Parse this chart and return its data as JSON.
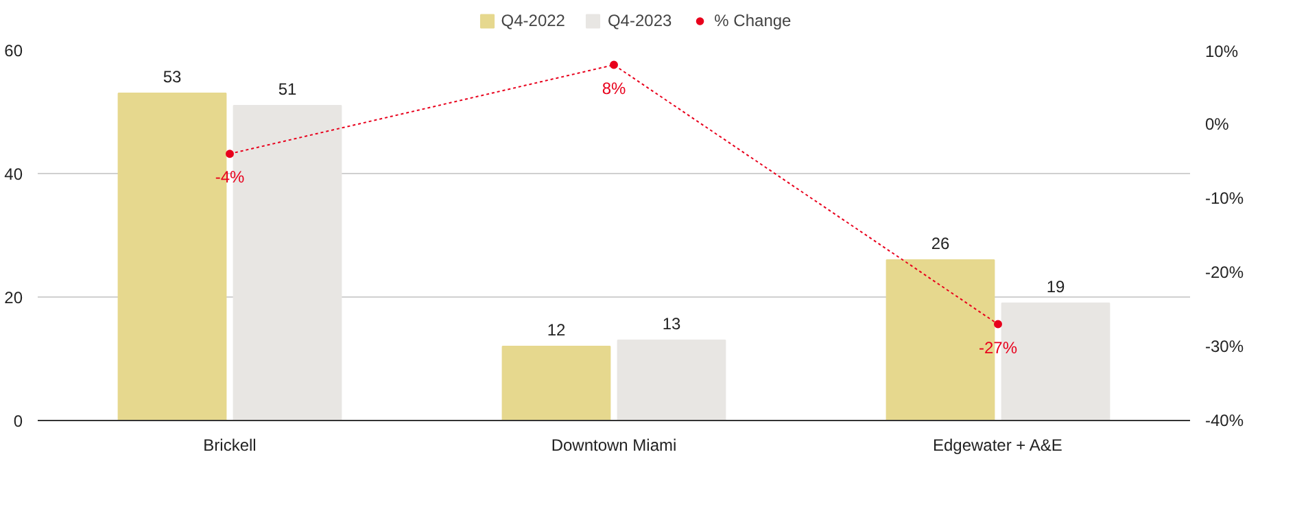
{
  "chart_data": {
    "type": "bar",
    "categories": [
      "Brickell",
      "Downtown Miami",
      "Edgewater + A&E"
    ],
    "series": [
      {
        "name": "Q4-2022",
        "color": "#e6d88e",
        "values": [
          53,
          12,
          26
        ]
      },
      {
        "name": "Q4-2023",
        "color": "#e8e6e3",
        "values": [
          51,
          13,
          19
        ]
      },
      {
        "name": "% Change",
        "type": "line",
        "axis": "y2",
        "color": "#e8001c",
        "marker": "circle",
        "line_style": "dotted",
        "values": [
          -4,
          8,
          -27
        ],
        "value_labels": [
          "-4%",
          "8%",
          "-27%"
        ]
      }
    ],
    "data_labels": true,
    "ylim": [
      0,
      60
    ],
    "yticks": [
      0,
      20,
      40,
      60
    ],
    "y2lim": [
      -40,
      10
    ],
    "y2ticks": [
      {
        "value": -40,
        "label": "-40%"
      },
      {
        "value": -30,
        "label": "-30%"
      },
      {
        "value": -20,
        "label": "-20%"
      },
      {
        "value": -10,
        "label": "-10%"
      },
      {
        "value": 0,
        "label": "0%"
      },
      {
        "value": 10,
        "label": "10%"
      }
    ],
    "grid": "y",
    "legend": "top"
  }
}
